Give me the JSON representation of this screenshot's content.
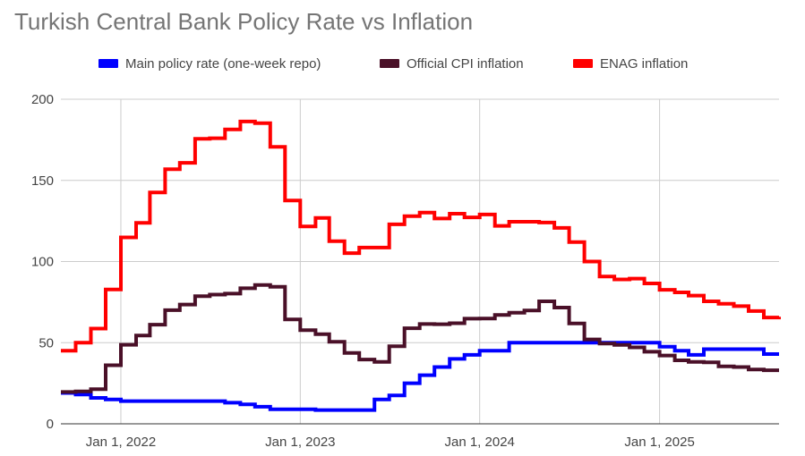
{
  "chart_data": {
    "type": "line",
    "title": "Turkish Central Bank Policy Rate vs Inflation",
    "xlabel": "",
    "ylabel": "",
    "ylim": [
      0,
      200
    ],
    "xlim": [
      "2021-09-01",
      "2025-09-01"
    ],
    "yticks": [
      "0",
      "50",
      "100",
      "150",
      "200"
    ],
    "xticks": [
      {
        "date": "2022-01-01",
        "label": "Jan 1, 2022"
      },
      {
        "date": "2023-01-01",
        "label": "Jan 1, 2023"
      },
      {
        "date": "2024-01-01",
        "label": "Jan 1, 2024"
      },
      {
        "date": "2025-01-01",
        "label": "Jan 1, 2025"
      }
    ],
    "grid": true,
    "legend_position": "top",
    "style": "step",
    "series": [
      {
        "name": "Main policy rate (one-week repo)",
        "color": "#0000ff",
        "points": [
          [
            "2021-09-01",
            19
          ],
          [
            "2021-10-01",
            18
          ],
          [
            "2021-11-01",
            16
          ],
          [
            "2021-12-01",
            15
          ],
          [
            "2022-01-01",
            14
          ],
          [
            "2022-02-01",
            14
          ],
          [
            "2022-03-01",
            14
          ],
          [
            "2022-04-01",
            14
          ],
          [
            "2022-05-01",
            14
          ],
          [
            "2022-06-01",
            14
          ],
          [
            "2022-07-01",
            14
          ],
          [
            "2022-08-01",
            13
          ],
          [
            "2022-09-01",
            12
          ],
          [
            "2022-10-01",
            10.5
          ],
          [
            "2022-11-01",
            9
          ],
          [
            "2022-12-01",
            9
          ],
          [
            "2023-01-01",
            9
          ],
          [
            "2023-02-01",
            8.5
          ],
          [
            "2023-03-01",
            8.5
          ],
          [
            "2023-04-01",
            8.5
          ],
          [
            "2023-05-01",
            8.5
          ],
          [
            "2023-06-01",
            15
          ],
          [
            "2023-07-01",
            17.5
          ],
          [
            "2023-08-01",
            25
          ],
          [
            "2023-09-01",
            30
          ],
          [
            "2023-10-01",
            35
          ],
          [
            "2023-11-01",
            40
          ],
          [
            "2023-12-01",
            42.5
          ],
          [
            "2024-01-01",
            45
          ],
          [
            "2024-02-01",
            45
          ],
          [
            "2024-03-01",
            50
          ],
          [
            "2024-04-01",
            50
          ],
          [
            "2024-05-01",
            50
          ],
          [
            "2024-06-01",
            50
          ],
          [
            "2024-07-01",
            50
          ],
          [
            "2024-08-01",
            50
          ],
          [
            "2024-09-01",
            50
          ],
          [
            "2024-10-01",
            50
          ],
          [
            "2024-11-01",
            50
          ],
          [
            "2024-12-01",
            50
          ],
          [
            "2025-01-01",
            47.5
          ],
          [
            "2025-02-01",
            45
          ],
          [
            "2025-03-01",
            42.5
          ],
          [
            "2025-04-01",
            46
          ],
          [
            "2025-05-01",
            46
          ],
          [
            "2025-06-01",
            46
          ],
          [
            "2025-07-01",
            46
          ],
          [
            "2025-08-01",
            43
          ],
          [
            "2025-09-01",
            43
          ]
        ]
      },
      {
        "name": "Official CPI inflation",
        "color": "#4a1028",
        "points": [
          [
            "2021-09-01",
            19.6
          ],
          [
            "2021-10-01",
            20
          ],
          [
            "2021-11-01",
            21.3
          ],
          [
            "2021-12-01",
            36.1
          ],
          [
            "2022-01-01",
            48.7
          ],
          [
            "2022-02-01",
            54.4
          ],
          [
            "2022-03-01",
            61.1
          ],
          [
            "2022-04-01",
            70
          ],
          [
            "2022-05-01",
            73.5
          ],
          [
            "2022-06-01",
            78.6
          ],
          [
            "2022-07-01",
            79.6
          ],
          [
            "2022-08-01",
            80.2
          ],
          [
            "2022-09-01",
            83.5
          ],
          [
            "2022-10-01",
            85.5
          ],
          [
            "2022-11-01",
            84.4
          ],
          [
            "2022-12-01",
            64.3
          ],
          [
            "2023-01-01",
            57.7
          ],
          [
            "2023-02-01",
            55.2
          ],
          [
            "2023-03-01",
            50.5
          ],
          [
            "2023-04-01",
            43.7
          ],
          [
            "2023-05-01",
            39.6
          ],
          [
            "2023-06-01",
            38.2
          ],
          [
            "2023-07-01",
            47.8
          ],
          [
            "2023-08-01",
            58.9
          ],
          [
            "2023-09-01",
            61.5
          ],
          [
            "2023-10-01",
            61.4
          ],
          [
            "2023-11-01",
            62
          ],
          [
            "2023-12-01",
            64.8
          ],
          [
            "2024-01-01",
            64.9
          ],
          [
            "2024-02-01",
            67.1
          ],
          [
            "2024-03-01",
            68.5
          ],
          [
            "2024-04-01",
            69.8
          ],
          [
            "2024-05-01",
            75.5
          ],
          [
            "2024-06-01",
            71.6
          ],
          [
            "2024-07-01",
            61.8
          ],
          [
            "2024-08-01",
            52
          ],
          [
            "2024-09-01",
            49.4
          ],
          [
            "2024-10-01",
            48.6
          ],
          [
            "2024-11-01",
            47.1
          ],
          [
            "2024-12-01",
            44.4
          ],
          [
            "2025-01-01",
            42.1
          ],
          [
            "2025-02-01",
            39.1
          ],
          [
            "2025-03-01",
            38.1
          ],
          [
            "2025-04-01",
            37.9
          ],
          [
            "2025-05-01",
            35.4
          ],
          [
            "2025-06-01",
            35
          ],
          [
            "2025-07-01",
            33.5
          ],
          [
            "2025-08-01",
            33
          ],
          [
            "2025-09-01",
            33
          ]
        ]
      },
      {
        "name": "ENAG inflation",
        "color": "#ff0000",
        "points": [
          [
            "2021-09-01",
            45
          ],
          [
            "2021-10-01",
            50
          ],
          [
            "2021-11-01",
            58.7
          ],
          [
            "2021-12-01",
            82.8
          ],
          [
            "2022-01-01",
            114.9
          ],
          [
            "2022-02-01",
            123.8
          ],
          [
            "2022-03-01",
            142.6
          ],
          [
            "2022-04-01",
            156.9
          ],
          [
            "2022-05-01",
            160.8
          ],
          [
            "2022-06-01",
            175.6
          ],
          [
            "2022-07-01",
            176
          ],
          [
            "2022-08-01",
            181.4
          ],
          [
            "2022-09-01",
            186.3
          ],
          [
            "2022-10-01",
            185.3
          ],
          [
            "2022-11-01",
            170.7
          ],
          [
            "2022-12-01",
            137.6
          ],
          [
            "2023-01-01",
            121.6
          ],
          [
            "2023-02-01",
            126.9
          ],
          [
            "2023-03-01",
            112.5
          ],
          [
            "2023-04-01",
            105.2
          ],
          [
            "2023-05-01",
            108.6
          ],
          [
            "2023-06-01",
            108.6
          ],
          [
            "2023-07-01",
            122.9
          ],
          [
            "2023-08-01",
            128
          ],
          [
            "2023-09-01",
            130.2
          ],
          [
            "2023-10-01",
            126.5
          ],
          [
            "2023-11-01",
            129.5
          ],
          [
            "2023-12-01",
            127.2
          ],
          [
            "2024-01-01",
            129
          ],
          [
            "2024-02-01",
            122
          ],
          [
            "2024-03-01",
            124.5
          ],
          [
            "2024-04-01",
            124.5
          ],
          [
            "2024-05-01",
            124
          ],
          [
            "2024-06-01",
            120.7
          ],
          [
            "2024-07-01",
            112
          ],
          [
            "2024-08-01",
            100
          ],
          [
            "2024-09-01",
            90.8
          ],
          [
            "2024-10-01",
            89
          ],
          [
            "2024-11-01",
            89.5
          ],
          [
            "2024-12-01",
            86.5
          ],
          [
            "2025-01-01",
            82.6
          ],
          [
            "2025-02-01",
            81
          ],
          [
            "2025-03-01",
            79
          ],
          [
            "2025-04-01",
            75.5
          ],
          [
            "2025-05-01",
            74
          ],
          [
            "2025-06-01",
            72.5
          ],
          [
            "2025-07-01",
            69.5
          ],
          [
            "2025-08-01",
            65.5
          ],
          [
            "2025-09-01",
            66
          ]
        ]
      }
    ]
  }
}
